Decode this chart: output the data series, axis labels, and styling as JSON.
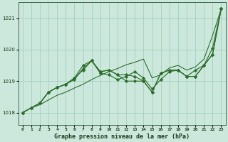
{
  "title": "Graphe pression niveau de la mer (hPa)",
  "background_color": "#cce8dc",
  "grid_color": "#99ccb8",
  "line_color": "#2d6e2d",
  "xlim": [
    -0.5,
    23.5
  ],
  "ylim": [
    1017.6,
    1021.5
  ],
  "yticks": [
    1018,
    1019,
    1020,
    1021
  ],
  "xtick_labels": [
    "0",
    "1",
    "2",
    "3",
    "4",
    "5",
    "6",
    "7",
    "8",
    "9",
    "10",
    "11",
    "12",
    "13",
    "14",
    "15",
    "16",
    "17",
    "18",
    "19",
    "20",
    "21",
    "22",
    "23"
  ],
  "series_no_marker": [
    1018.0,
    1018.15,
    1018.25,
    1018.4,
    1018.55,
    1018.65,
    1018.78,
    1018.9,
    1019.05,
    1019.18,
    1019.3,
    1019.4,
    1019.52,
    1019.6,
    1019.7,
    1019.1,
    1019.2,
    1019.42,
    1019.5,
    1019.35,
    1019.45,
    1019.7,
    1020.45,
    1021.3
  ],
  "series_with_markers": [
    [
      1018.0,
      1018.15,
      1018.3,
      1018.65,
      1018.8,
      1018.9,
      1019.05,
      1019.4,
      1019.65,
      1019.25,
      1019.2,
      1019.05,
      1019.15,
      1019.3,
      1019.1,
      1018.75,
      1019.05,
      1019.3,
      1019.35,
      1019.15,
      1019.35,
      1019.5,
      1020.05,
      1021.3
    ],
    [
      1018.0,
      1018.15,
      1018.3,
      1018.65,
      1018.8,
      1018.9,
      1019.1,
      1019.35,
      1019.65,
      1019.3,
      1019.35,
      1019.2,
      1019.0,
      1019.0,
      1019.0,
      1018.65,
      1019.25,
      1019.35,
      1019.35,
      1019.15,
      1019.15,
      1019.5,
      1019.85,
      1021.3
    ],
    [
      1018.0,
      1018.15,
      1018.3,
      1018.65,
      1018.8,
      1018.9,
      1019.1,
      1019.5,
      1019.65,
      1019.3,
      1019.35,
      1019.2,
      1019.2,
      1019.15,
      1019.0,
      1018.65,
      1019.25,
      1019.35,
      1019.35,
      1019.15,
      1019.15,
      1019.5,
      1019.85,
      1021.3
    ]
  ]
}
